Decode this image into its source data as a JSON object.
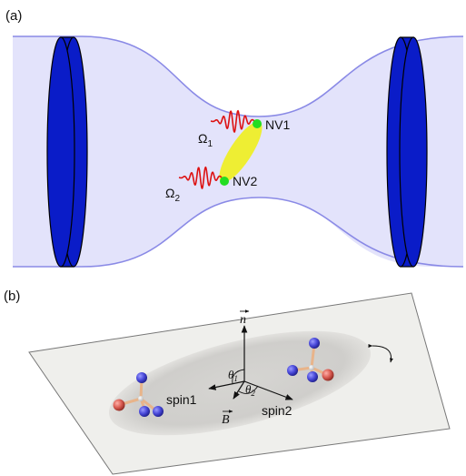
{
  "panel_a": {
    "label": "(a)",
    "nv1_label": "NV1",
    "nv2_label": "NV2",
    "omega": "Ω",
    "omega1_sub": "1",
    "omega2_sub": "2",
    "colors": {
      "beam_fill": "#e3e3fb",
      "beam_edge": "#8a8ae6",
      "mirror": "#0a1cc8",
      "coupling": "#eeee33",
      "nv_dot": "#22dd22",
      "pulse": "#dd1111"
    }
  },
  "panel_b": {
    "label": "(b)",
    "n_vec": "n",
    "b_vec": "B",
    "theta": "θ",
    "theta1_sub": "1",
    "theta2_sub": "2",
    "spin1_label": "spin1",
    "spin2_label": "spin2",
    "colors": {
      "plane": "#efefec",
      "ellipse": "#d0cfcc",
      "atom_n": "#3a3ac8",
      "atom_red": "#d0504a",
      "bond": "#e8b48a"
    }
  }
}
